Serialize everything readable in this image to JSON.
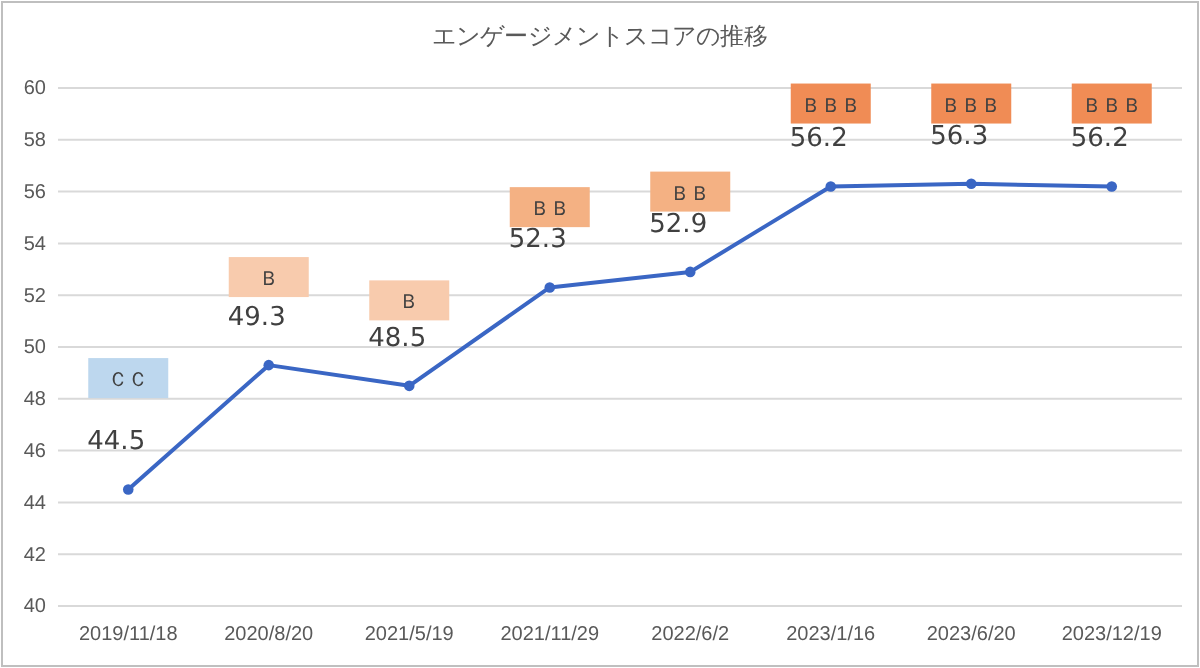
{
  "chart_data": {
    "type": "line",
    "title": "エンゲージメントスコアの推移",
    "categories": [
      "2019/11/18",
      "2020/8/20",
      "2021/5/19",
      "2021/11/29",
      "2022/6/2",
      "2023/1/16",
      "2023/6/20",
      "2023/12/19"
    ],
    "values": [
      44.5,
      49.3,
      48.5,
      52.3,
      52.9,
      56.2,
      56.3,
      56.2
    ],
    "color": "#3a66c4",
    "ylim": [
      40,
      60
    ],
    "yticks": [
      40,
      42,
      44,
      46,
      48,
      50,
      52,
      54,
      56,
      58,
      60
    ],
    "grid": "y",
    "marker": "circle",
    "line_style": "solid",
    "data_labels": true,
    "annotations": [
      {
        "text": "ＣＣ",
        "x": "2019/11/18",
        "y": 48.8
      },
      {
        "text": "Ｂ",
        "x": "2020/8/20",
        "y": 52.7
      },
      {
        "text": "Ｂ",
        "x": "2021/5/19",
        "y": 51.8
      },
      {
        "text": "ＢＢ",
        "x": "2021/11/29",
        "y": 55.4
      },
      {
        "text": "ＢＢ",
        "x": "2022/6/2",
        "y": 56.0
      },
      {
        "text": "ＢＢＢ",
        "x": "2023/1/16",
        "y": 59.4
      },
      {
        "text": "ＢＢＢ",
        "x": "2023/6/20",
        "y": 59.4
      },
      {
        "text": "ＢＢＢ",
        "x": "2023/12/19",
        "y": 59.4
      }
    ]
  }
}
